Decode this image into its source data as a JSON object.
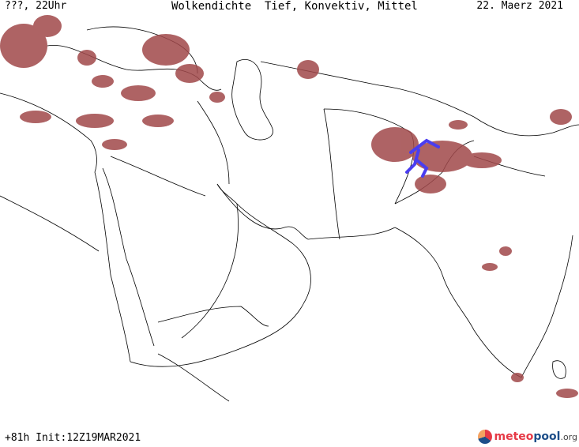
{
  "header": {
    "left": "???, 22Uhr",
    "center": "Wolkendichte  Tief, Konvektiv, Mittel",
    "right": "22. Maerz 2021"
  },
  "footer": {
    "left": "+81h Init:12Z19MAR2021"
  },
  "logo": {
    "part1": "meteo",
    "part2": "pool",
    "part3": ".org"
  },
  "colors": {
    "cloud": "#a0484a",
    "convective": "#4a3df0",
    "border": "#000000"
  }
}
